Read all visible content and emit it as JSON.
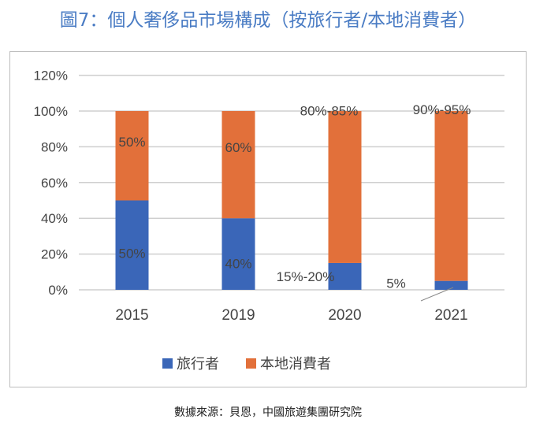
{
  "title": "圖7：個人奢侈品市場構成（按旅行者/本地消費者）",
  "source": "數據來源：貝恩，中國旅遊集團研究院",
  "chart_data": {
    "type": "bar",
    "stacked": true,
    "categories": [
      "2015",
      "2019",
      "2020",
      "2021"
    ],
    "series": [
      {
        "name": "旅行者",
        "color": "#3a66b8",
        "values": [
          50,
          40,
          15,
          5
        ],
        "labels": [
          "50%",
          "40%",
          "15%-20%",
          "5%"
        ]
      },
      {
        "name": "本地消費者",
        "color": "#e2703a",
        "values": [
          50,
          60,
          85,
          95
        ],
        "labels": [
          "50%",
          "60%",
          "80%-85%",
          "90%-95%"
        ]
      }
    ],
    "ylim": [
      0,
      120
    ],
    "yticks": [
      "0%",
      "20%",
      "40%",
      "60%",
      "80%",
      "100%",
      "120%"
    ],
    "grid": true,
    "legend": "bottom"
  }
}
